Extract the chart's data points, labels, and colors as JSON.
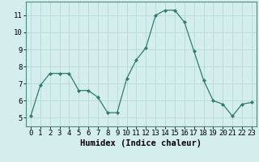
{
  "x": [
    0,
    1,
    2,
    3,
    4,
    5,
    6,
    7,
    8,
    9,
    10,
    11,
    12,
    13,
    14,
    15,
    16,
    17,
    18,
    19,
    20,
    21,
    22,
    23
  ],
  "y": [
    5.1,
    6.9,
    7.6,
    7.6,
    7.6,
    6.6,
    6.6,
    6.2,
    5.3,
    5.3,
    7.3,
    8.4,
    9.1,
    11.0,
    11.3,
    11.3,
    10.6,
    8.9,
    7.2,
    6.0,
    5.8,
    5.1,
    5.8,
    5.9
  ],
  "line_color": "#2e7d6e",
  "marker": "D",
  "marker_size": 2.0,
  "bg_color": "#d4eeee",
  "grid_color": "#b8d8d8",
  "xlabel": "Humidex (Indice chaleur)",
  "xlim": [
    -0.5,
    23.5
  ],
  "ylim": [
    4.5,
    11.8
  ],
  "yticks": [
    5,
    6,
    7,
    8,
    9,
    10,
    11
  ],
  "xticks": [
    0,
    1,
    2,
    3,
    4,
    5,
    6,
    7,
    8,
    9,
    10,
    11,
    12,
    13,
    14,
    15,
    16,
    17,
    18,
    19,
    20,
    21,
    22,
    23
  ],
  "tick_label_fontsize": 6.5,
  "xlabel_fontsize": 7.5,
  "linewidth": 0.9,
  "spine_color": "#4a8a80"
}
